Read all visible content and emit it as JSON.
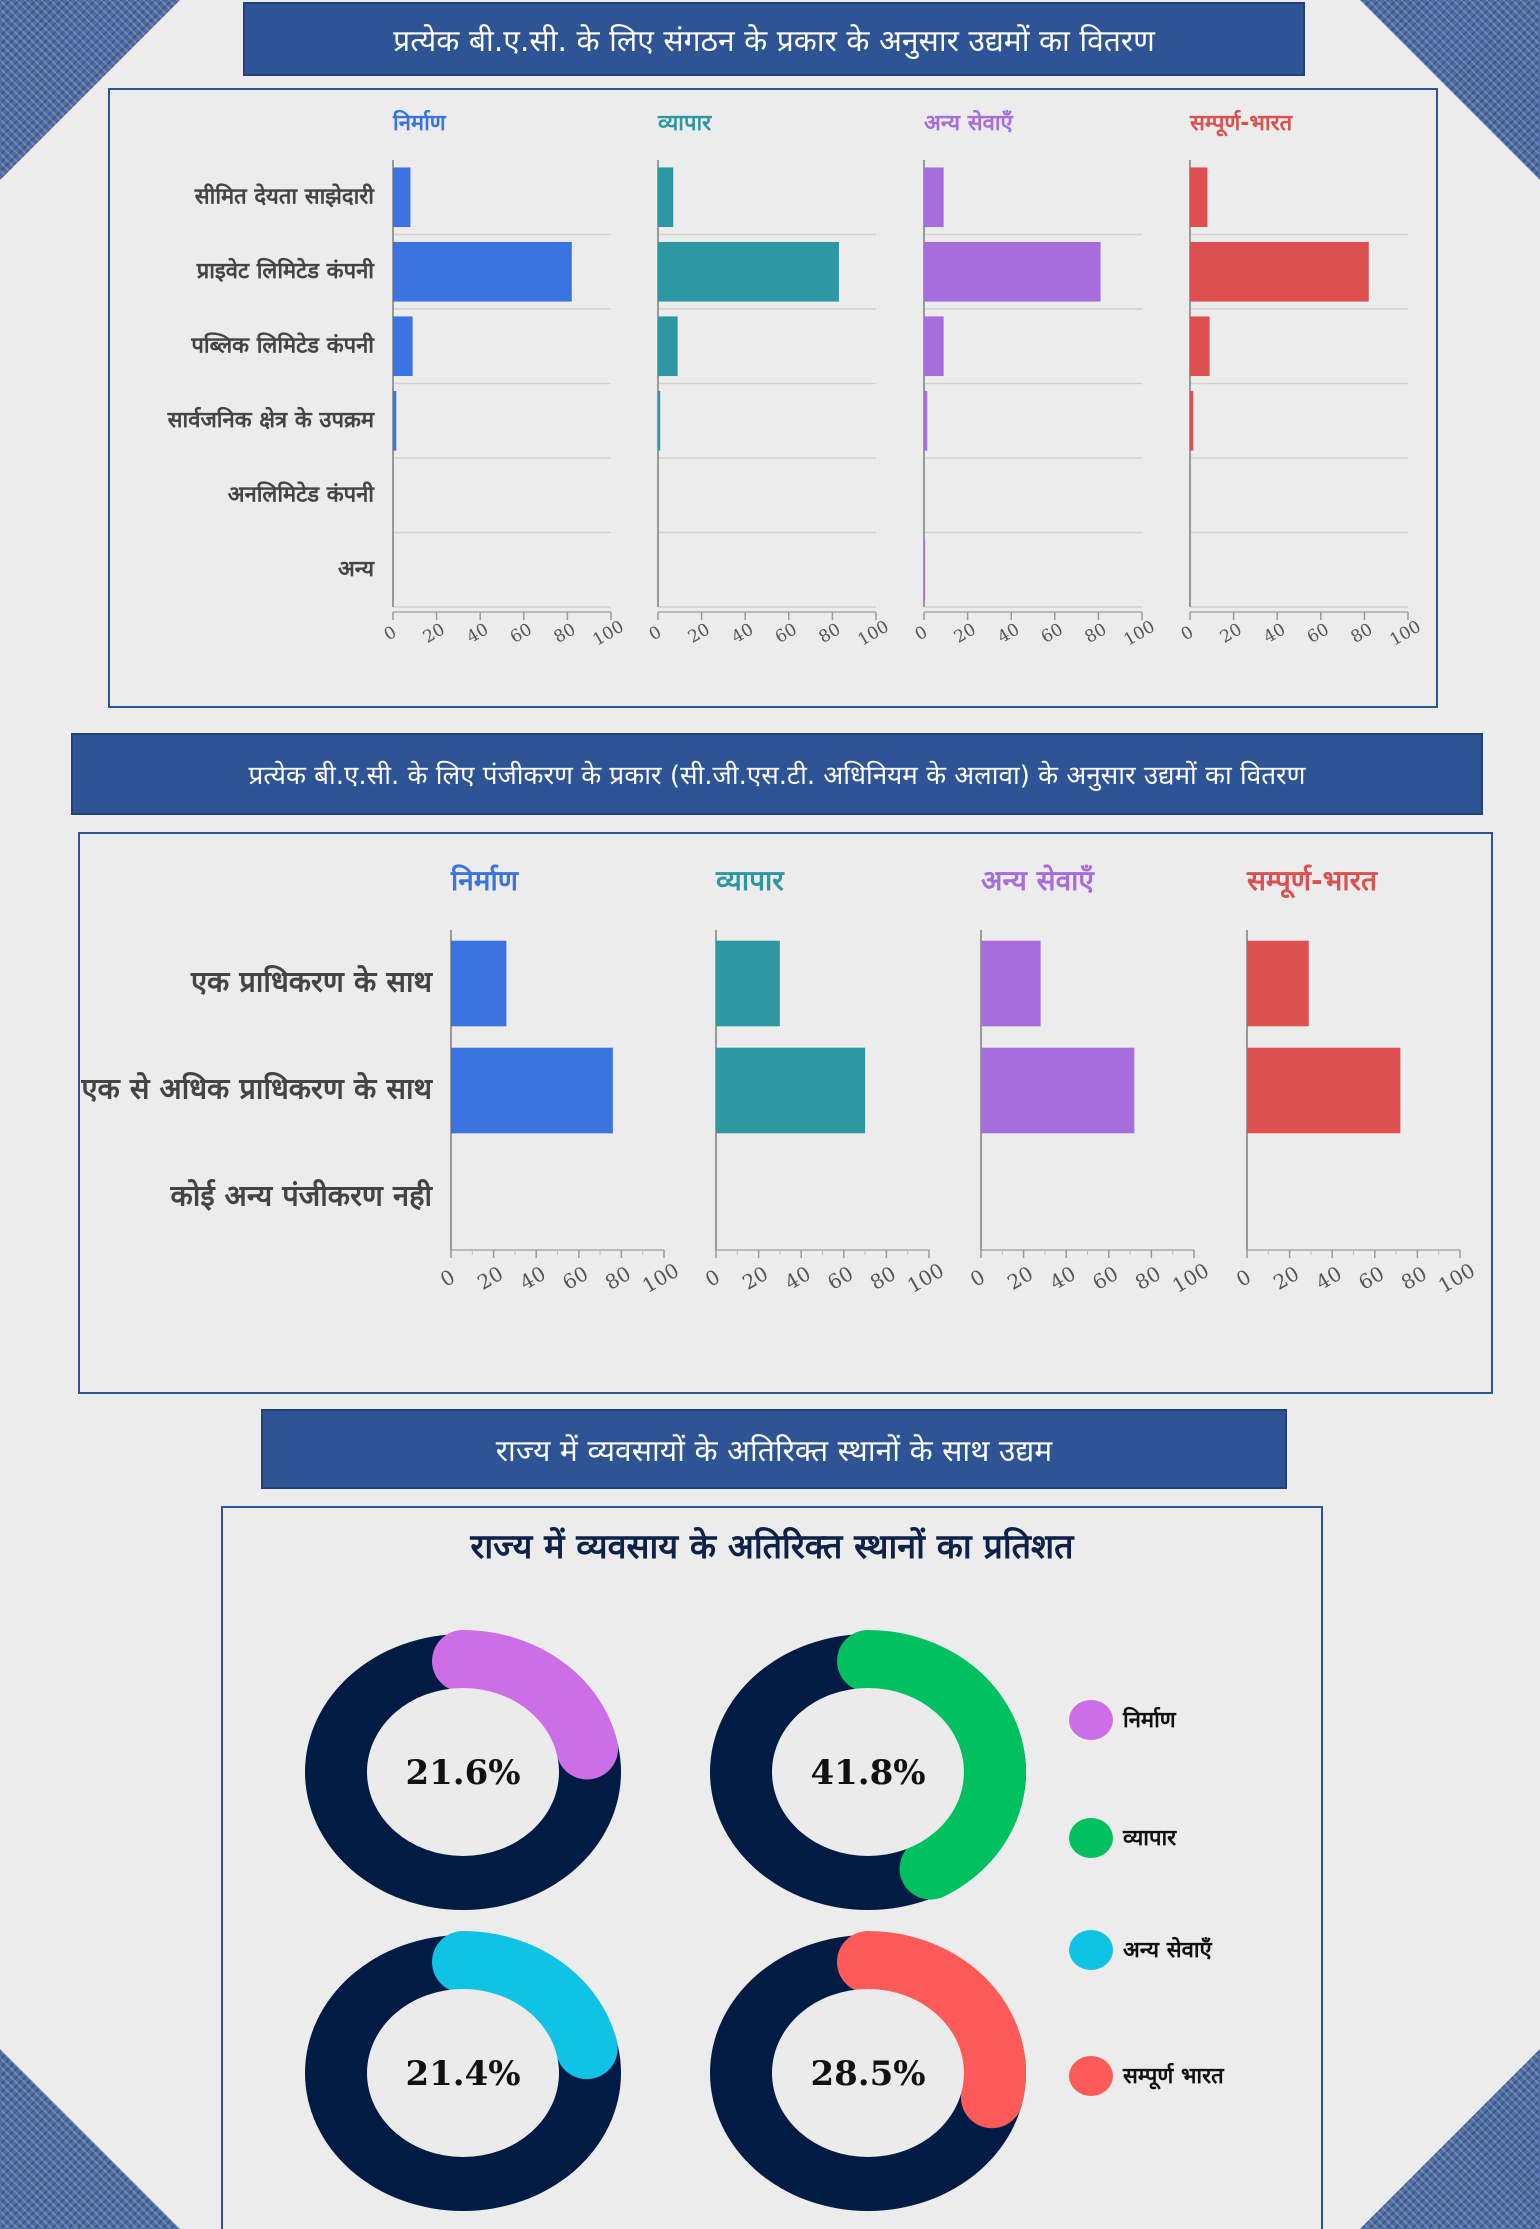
{
  "colors": {
    "manufacturing": "#3b73e0",
    "trade": "#2e97a2",
    "other_services": "#a56edc",
    "all_india": "#dc5050",
    "banner": "#2f5496",
    "donut_dark": "#001b44",
    "donut_manufacturing": "#cc6ee6",
    "donut_trade": "#00c060",
    "donut_other_services": "#10c2e3",
    "donut_all_india": "#ff5a5a"
  },
  "section1": {
    "banner": "प्रत्येक बी.ए.सी. के लिए संगठन के प्रकार के अनुसार उद्यमों का वितरण"
  },
  "section2": {
    "banner": "प्रत्येक बी.ए.सी. के लिए पंजीकरण के प्रकार (सी.जी.एस.टी. अधिनियम के अलावा) के अनुसार उद्यमों का वितरण"
  },
  "section3": {
    "banner": "राज्य में व्यवसायों के अतिरिक्त स्थानों के साथ उद्यम",
    "chart_title": "राज्य में व्यवसाय के अतिरिक्त स्थानों का प्रतिशत"
  },
  "chart_data": [
    {
      "type": "bar",
      "orientation": "horizontal",
      "categories": [
        "सीमित देयता साझेदारी",
        "प्राइवेट लिमिटेड कंपनी",
        "पब्लिक लिमिटेड कंपनी",
        "सार्वजनिक क्षेत्र के उपक्रम",
        "अनलिमिटेड कंपनी",
        "अन्य"
      ],
      "xlim": [
        0,
        100
      ],
      "xticks": [
        "0",
        "20",
        "40",
        "60",
        "80",
        "100"
      ],
      "grid": false,
      "series": [
        {
          "name": "निर्माण",
          "values": [
            8,
            82,
            9,
            1.5,
            0,
            0
          ]
        },
        {
          "name": "व्यापार",
          "values": [
            7,
            83,
            9,
            1,
            0,
            0
          ]
        },
        {
          "name": "अन्य सेवाएँ",
          "values": [
            9,
            81,
            9,
            1.5,
            0,
            0.5
          ]
        },
        {
          "name": "सम्पूर्ण-भारत",
          "values": [
            8,
            82,
            9,
            1.5,
            0,
            0
          ]
        }
      ]
    },
    {
      "type": "bar",
      "orientation": "horizontal",
      "categories": [
        "एक प्राधिकरण के साथ",
        "एक से अधिक प्राधिकरण के साथ",
        "कोई अन्य पंजीकरण नही"
      ],
      "xlim": [
        0,
        100
      ],
      "xticks": [
        "0",
        "20",
        "40",
        "60",
        "80",
        "100"
      ],
      "grid": false,
      "series": [
        {
          "name": "निर्माण",
          "values": [
            26,
            76,
            0
          ]
        },
        {
          "name": "व्यापार",
          "values": [
            30,
            70,
            0
          ]
        },
        {
          "name": "अन्य सेवाएँ",
          "values": [
            28,
            72,
            0
          ]
        },
        {
          "name": "सम्पूर्ण-भारत",
          "values": [
            29,
            72,
            0
          ]
        }
      ]
    },
    {
      "type": "pie",
      "style": "donut",
      "title": "राज्य में व्यवसाय के अतिरिक्त स्थानों का प्रतिशत",
      "legend": "right",
      "series": [
        {
          "name": "निर्माण",
          "value": 21.6,
          "label": "21.6%"
        },
        {
          "name": "व्यापार",
          "value": 41.8,
          "label": "41.8%"
        },
        {
          "name": "अन्य सेवाएँ",
          "value": 21.4,
          "label": "21.4%"
        },
        {
          "name": "सम्पूर्ण भारत",
          "value": 28.5,
          "label": "28.5%"
        }
      ]
    }
  ]
}
